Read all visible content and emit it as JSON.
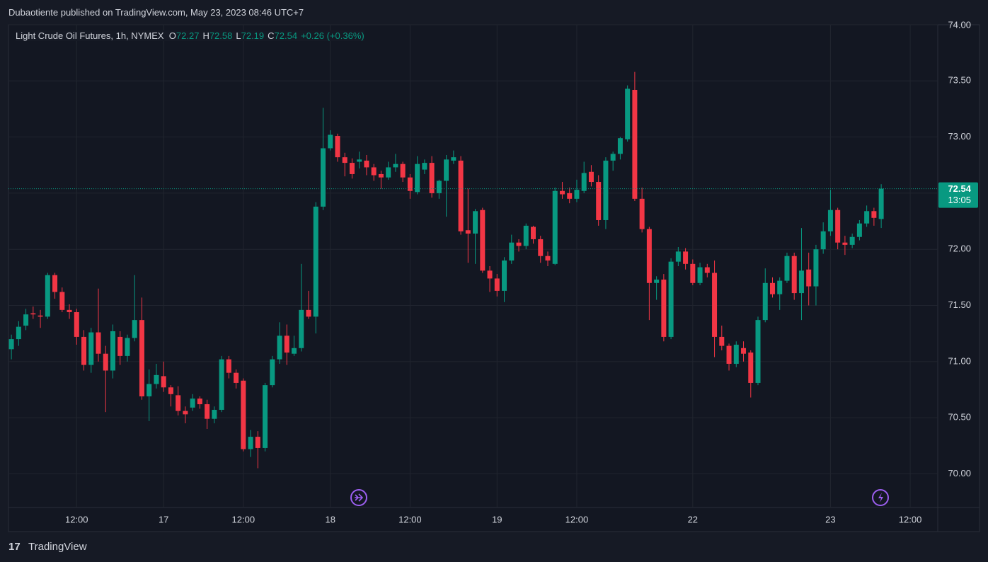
{
  "header": {
    "published": "Dubaotiente published on TradingView.com, May 23, 2023 08:46 UTC+7",
    "symbol": "Light Crude Oil Futures, 1h, NYMEX",
    "ohlc": [
      {
        "label": "O",
        "value": "72.27"
      },
      {
        "label": "H",
        "value": "72.58"
      },
      {
        "label": "L",
        "value": "72.19"
      },
      {
        "label": "C",
        "value": "72.54"
      }
    ],
    "change": "+0.26 (+0.36%)"
  },
  "footer": {
    "brand": "TradingView"
  },
  "chart_data": {
    "type": "candlestick",
    "up_color": "#089981",
    "down_color": "#f23645",
    "grid": true,
    "open": [
      71.11,
      71.2,
      71.32,
      71.43,
      71.41,
      71.4,
      71.77,
      71.62,
      71.46,
      71.44,
      71.22,
      70.97,
      71.26,
      71.07,
      70.92,
      71.22,
      71.05,
      71.21,
      71.37,
      70.69,
      70.8,
      70.87,
      70.77,
      70.7,
      70.56,
      70.59,
      70.67,
      70.62,
      70.49,
      70.57,
      71.02,
      70.9,
      70.83,
      70.22,
      70.33,
      70.23,
      70.79,
      71.02,
      71.23,
      71.07,
      71.12,
      71.46,
      71.4,
      72.38,
      72.9,
      73.01,
      72.82,
      72.77,
      72.78,
      72.79,
      72.73,
      72.67,
      72.64,
      72.73,
      72.76,
      72.64,
      72.51,
      72.71,
      72.77,
      72.5,
      72.61,
      72.79,
      72.79,
      72.17,
      72.14,
      72.35,
      71.81,
      71.74,
      71.63,
      71.9,
      72.06,
      72.03,
      72.2,
      72.09,
      71.94,
      71.87,
      72.52,
      72.5,
      72.45,
      72.52,
      72.69,
      72.6,
      72.26,
      72.79,
      72.85,
      72.98,
      73.42,
      72.45,
      72.18,
      71.7,
      71.73,
      71.22,
      71.89,
      71.98,
      71.87,
      71.7,
      71.84,
      71.79,
      71.22,
      71.14,
      70.98,
      71.12,
      71.08,
      70.81,
      71.37,
      71.7,
      71.6,
      71.72,
      71.94,
      71.61,
      71.82,
      71.67,
      72.0,
      72.16,
      72.35,
      72.06,
      72.04,
      72.11,
      72.23,
      72.34,
      72.27
    ],
    "high": [
      71.24,
      71.36,
      71.47,
      71.49,
      71.46,
      71.79,
      71.79,
      71.66,
      71.51,
      71.47,
      71.28,
      71.3,
      71.65,
      71.14,
      71.33,
      71.27,
      71.24,
      71.77,
      71.57,
      70.93,
      70.98,
      71.0,
      70.79,
      70.78,
      70.6,
      70.71,
      70.69,
      70.66,
      70.6,
      71.05,
      71.05,
      70.93,
      70.85,
      70.39,
      70.38,
      70.81,
      71.05,
      71.35,
      71.33,
      71.23,
      71.87,
      71.63,
      72.42,
      73.26,
      73.06,
      73.03,
      72.86,
      72.81,
      72.87,
      72.84,
      72.76,
      72.7,
      72.78,
      72.85,
      72.78,
      72.67,
      72.83,
      72.8,
      72.83,
      72.62,
      72.84,
      72.88,
      72.83,
      72.54,
      72.36,
      72.37,
      71.85,
      71.78,
      71.93,
      72.13,
      72.09,
      72.23,
      72.21,
      72.12,
      71.98,
      72.55,
      72.6,
      72.55,
      72.62,
      72.78,
      72.75,
      72.66,
      72.82,
      72.87,
      73.0,
      73.46,
      73.58,
      72.55,
      72.2,
      71.76,
      71.78,
      71.92,
      72.02,
      72.01,
      71.91,
      71.88,
      71.87,
      71.9,
      71.32,
      71.16,
      71.18,
      71.18,
      71.1,
      71.4,
      71.83,
      71.75,
      71.75,
      71.97,
      71.97,
      72.19,
      71.97,
      72.04,
      72.24,
      72.53,
      72.37,
      72.12,
      72.14,
      72.26,
      72.39,
      72.37,
      72.58
    ],
    "low": [
      71.02,
      71.14,
      71.28,
      71.38,
      71.3,
      71.38,
      71.56,
      71.44,
      71.38,
      71.15,
      70.92,
      70.9,
      71.0,
      70.55,
      70.85,
      70.97,
      71.0,
      71.18,
      70.66,
      70.47,
      70.76,
      70.73,
      70.6,
      70.52,
      70.45,
      70.56,
      70.58,
      70.4,
      70.45,
      70.55,
      70.85,
      70.76,
      70.2,
      70.15,
      70.05,
      70.2,
      70.77,
      70.98,
      70.97,
      71.05,
      71.09,
      71.38,
      71.25,
      72.35,
      72.88,
      72.78,
      72.65,
      72.63,
      72.72,
      72.66,
      72.61,
      72.54,
      72.62,
      72.69,
      72.6,
      72.45,
      72.49,
      72.67,
      72.46,
      72.45,
      72.29,
      72.76,
      72.13,
      71.88,
      71.87,
      71.79,
      71.62,
      71.58,
      71.53,
      71.87,
      71.98,
      72.0,
      72.05,
      71.88,
      71.85,
      71.86,
      72.45,
      72.41,
      72.42,
      72.5,
      72.56,
      72.21,
      72.18,
      72.7,
      72.8,
      72.96,
      72.43,
      72.15,
      71.37,
      71.55,
      71.18,
      71.2,
      71.85,
      71.82,
      71.68,
      71.68,
      71.75,
      71.04,
      71.1,
      70.92,
      70.95,
      71.0,
      70.68,
      70.79,
      71.35,
      71.57,
      71.46,
      71.7,
      71.55,
      71.37,
      71.5,
      71.5,
      71.96,
      72.12,
      72.0,
      71.95,
      72.01,
      72.08,
      72.2,
      72.21,
      72.19
    ],
    "close": [
      71.2,
      71.31,
      71.42,
      71.42,
      71.4,
      71.77,
      71.62,
      71.46,
      71.44,
      71.22,
      70.97,
      71.26,
      71.07,
      70.92,
      71.27,
      71.05,
      71.21,
      71.37,
      70.69,
      70.8,
      70.88,
      70.77,
      70.71,
      70.56,
      70.53,
      70.67,
      70.62,
      70.49,
      70.57,
      71.02,
      70.9,
      70.81,
      70.22,
      70.33,
      70.23,
      70.79,
      71.02,
      71.23,
      71.08,
      71.12,
      71.46,
      71.4,
      72.38,
      72.9,
      73.02,
      72.82,
      72.77,
      72.67,
      72.8,
      72.73,
      72.66,
      72.64,
      72.73,
      72.76,
      72.64,
      72.52,
      72.76,
      72.77,
      72.5,
      72.61,
      72.8,
      72.82,
      72.16,
      72.14,
      72.34,
      71.81,
      71.74,
      71.63,
      71.9,
      72.06,
      72.03,
      72.21,
      72.09,
      71.94,
      71.9,
      72.52,
      72.49,
      72.45,
      72.53,
      72.68,
      72.6,
      72.26,
      72.79,
      72.85,
      72.99,
      73.43,
      72.45,
      72.18,
      71.7,
      71.73,
      71.22,
      71.89,
      71.98,
      71.87,
      71.7,
      71.84,
      71.79,
      71.22,
      71.14,
      70.98,
      71.15,
      71.07,
      70.81,
      71.37,
      71.7,
      71.6,
      71.72,
      71.94,
      71.61,
      71.81,
      71.67,
      72.0,
      72.16,
      72.35,
      72.06,
      72.04,
      72.11,
      72.23,
      72.34,
      72.28,
      72.54
    ],
    "last_price": 72.54,
    "countdown": "13:05",
    "xlim": [
      -0.4,
      127.8
    ],
    "xticks": [
      {
        "value": 9,
        "label": "12:00"
      },
      {
        "value": 21,
        "label": "17"
      },
      {
        "value": 32,
        "label": "12:00"
      },
      {
        "value": 44,
        "label": "18"
      },
      {
        "value": 55,
        "label": "12:00"
      },
      {
        "value": 67,
        "label": "19"
      },
      {
        "value": 78,
        "label": "12:00"
      },
      {
        "value": 94,
        "label": "22"
      },
      {
        "value": 113,
        "label": "23"
      },
      {
        "value": 124,
        "label": "12:00"
      }
    ],
    "ylim": [
      69.7,
      74.0
    ],
    "yticks": [
      {
        "value": 70,
        "label": "70.00"
      },
      {
        "value": 70.5,
        "label": "70.50"
      },
      {
        "value": 71,
        "label": "71.00"
      },
      {
        "value": 71.5,
        "label": "71.50"
      },
      {
        "value": 72,
        "label": "72.00"
      },
      {
        "value": 72.5,
        "label": "72.50"
      },
      {
        "value": 73,
        "label": "73.00"
      },
      {
        "value": 73.5,
        "label": "73.50"
      },
      {
        "value": 74,
        "label": "74.00"
      }
    ]
  }
}
